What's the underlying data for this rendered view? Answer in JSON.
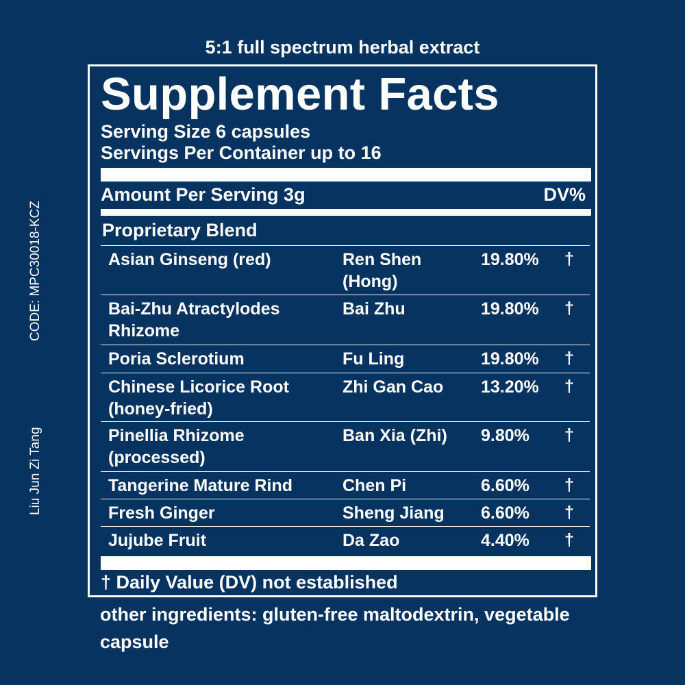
{
  "top_caption": "5:1 full spectrum herbal extract",
  "side": {
    "code": "CODE: MPC30018-KCZ",
    "product_name": "Liu Jun Zi Tang"
  },
  "panel": {
    "title": "Supplement Facts",
    "serving_size": "Serving Size 6 capsules",
    "servings_per_container": "Servings Per Container up to 16",
    "amount_per_serving": "Amount Per Serving 3g",
    "dv_header": "DV%",
    "blend_label": "Proprietary Blend",
    "ingredients": [
      {
        "name": "Asian Ginseng (red)",
        "pinyin": "Ren Shen (Hong)",
        "percent": "19.80%",
        "dv": "†"
      },
      {
        "name": "Bai-Zhu Atractylodes Rhizome",
        "pinyin": "Bai Zhu",
        "percent": "19.80%",
        "dv": "†"
      },
      {
        "name": "Poria Sclerotium",
        "pinyin": "Fu Ling",
        "percent": "19.80%",
        "dv": "†"
      },
      {
        "name": "Chinese Licorice Root (honey-fried)",
        "pinyin": "Zhi Gan Cao",
        "percent": "13.20%",
        "dv": "†"
      },
      {
        "name": "Pinellia Rhizome (processed)",
        "pinyin": "Ban Xia (Zhi)",
        "percent": "9.80%",
        "dv": "†"
      },
      {
        "name": "Tangerine Mature Rind",
        "pinyin": "Chen Pi",
        "percent": "6.60%",
        "dv": "†"
      },
      {
        "name": "Fresh Ginger",
        "pinyin": "Sheng Jiang",
        "percent": "6.60%",
        "dv": "†"
      },
      {
        "name": "Jujube Fruit",
        "pinyin": "Da Zao",
        "percent": "4.40%",
        "dv": "†"
      }
    ],
    "footnote": "† Daily Value (DV) not established"
  },
  "other_ingredients": "other ingredients: gluten-free maltodextrin, vegetable capsule",
  "colors": {
    "background": "#073361",
    "text": "#ffffff"
  }
}
